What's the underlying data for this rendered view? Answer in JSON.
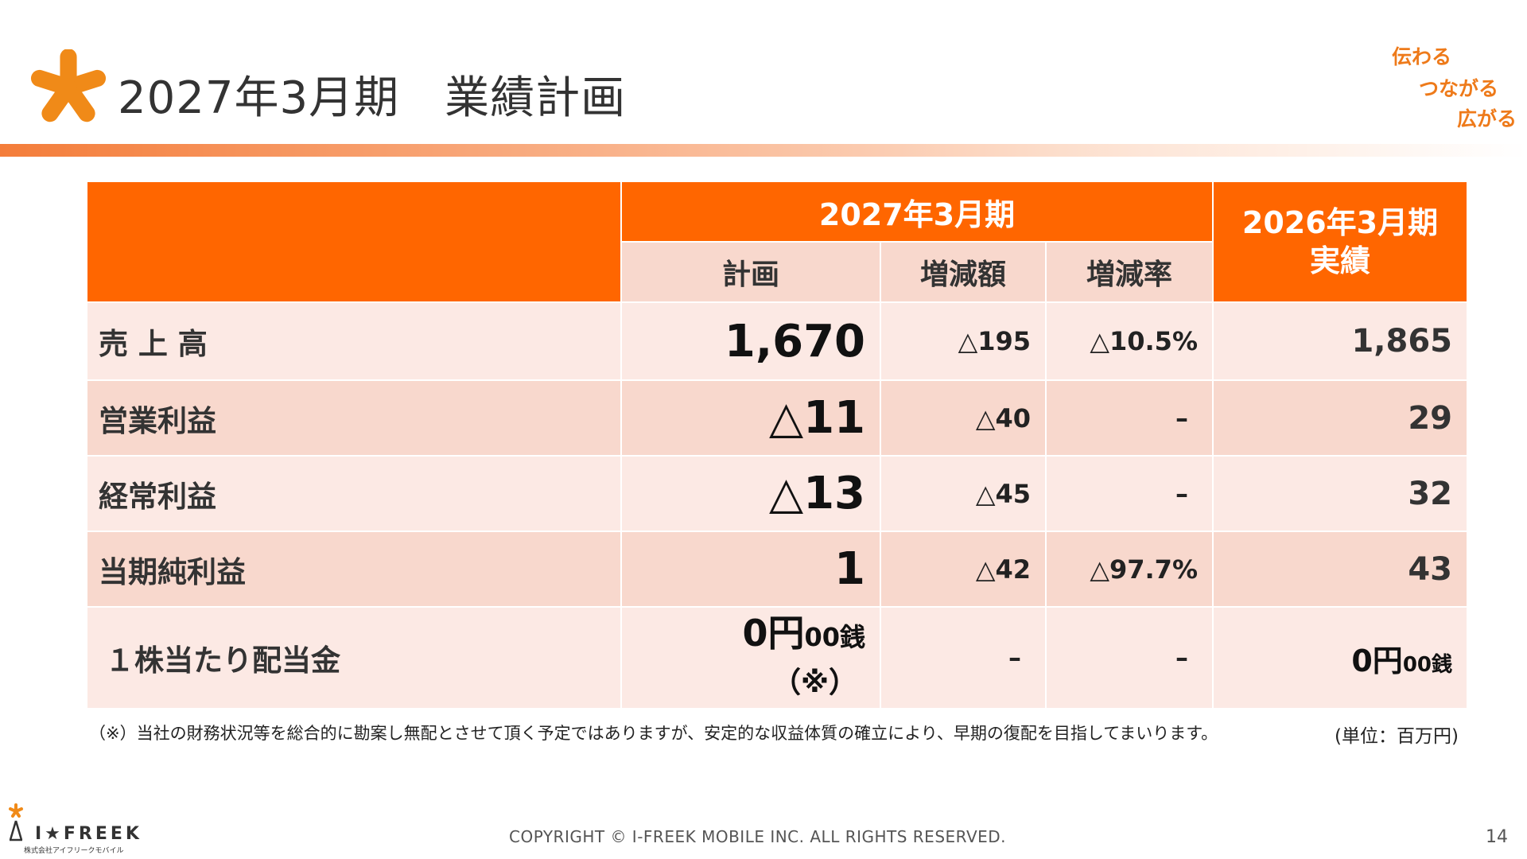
{
  "header": {
    "title": "2027年3月期　業績計画",
    "slogan": [
      "伝わる",
      "つながる",
      "広がる"
    ]
  },
  "colors": {
    "accent": "#ff6600",
    "light_row": "#fce9e4",
    "dark_row": "#f8d8cd",
    "slogan": "#ee7a1a"
  },
  "table": {
    "group_header": "2027年3月期",
    "actual_header": [
      "2026年3月期",
      "実績"
    ],
    "columns": [
      "計画",
      "増減額",
      "増減率"
    ],
    "rows": [
      {
        "label": "売 上 高",
        "plan": "1,670",
        "change": "△195",
        "rate": "△10.5%",
        "actual": "1,865"
      },
      {
        "label": "営業利益",
        "plan": "△11",
        "change": "△40",
        "rate": "–",
        "actual": "29"
      },
      {
        "label": "経常利益",
        "plan": "△13",
        "change": "△45",
        "rate": "–",
        "actual": "32"
      },
      {
        "label": "当期純利益",
        "plan": "1",
        "change": "△42",
        "rate": "△97.7%",
        "actual": "43"
      }
    ],
    "dividend": {
      "label": "１株当たり配当金",
      "plan_main": "0円",
      "plan_sub": "00銭",
      "plan_note": "（※）",
      "change": "–",
      "rate": "–",
      "actual_main": "0円",
      "actual_sub": "00銭"
    }
  },
  "footnote": "（※）当社の財務状況等を総合的に勘案し無配とさせて頂く予定ではありますが、安定的な収益体質の確立により、早期の復配を目指してまいります。",
  "unit": "(単位：百万円)",
  "footer": {
    "copyright": "COPYRIGHT © I-FREEK MOBILE INC. ALL RIGHTS RESERVED.",
    "page_number": "14",
    "logo_text": "I★FREEK",
    "logo_sub": "株式会社アイフリークモバイル"
  }
}
